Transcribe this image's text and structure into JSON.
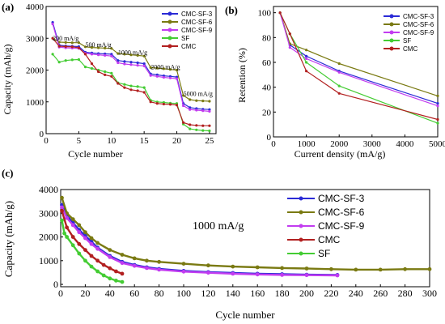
{
  "colors": {
    "cmc_sf_3": "#2b2bd6",
    "cmc_sf_6": "#7a7a12",
    "cmc_sf_9": "#c23cf0",
    "sf": "#44cc33",
    "cmc": "#b22020"
  },
  "chart_data": [
    {
      "panel": "(a)",
      "type": "line",
      "xlabel": "Cycle number",
      "ylabel": "Capacity (mAh/g)",
      "xlim": [
        0,
        26
      ],
      "ylim": [
        0,
        4000
      ],
      "xticks": [
        0,
        5,
        10,
        15,
        20,
        25
      ],
      "yticks": [
        0,
        1000,
        2000,
        3000,
        4000
      ],
      "legend": "top-right",
      "annotations": [
        {
          "text": "200 mA/g",
          "x": 1.0,
          "y": 2930
        },
        {
          "text": "500 mA/g",
          "x": 6.0,
          "y": 2720
        },
        {
          "text": "1000 mA/g",
          "x": 11.0,
          "y": 2490
        },
        {
          "text": "2000 mA/g",
          "x": 16.0,
          "y": 2030
        },
        {
          "text": "5000 mA/g",
          "x": 21.0,
          "y": 1180
        }
      ],
      "x": [
        1,
        2,
        3,
        4,
        5,
        6,
        7,
        8,
        9,
        10,
        11,
        12,
        13,
        14,
        15,
        16,
        17,
        18,
        19,
        20,
        21,
        22,
        23,
        24,
        25
      ],
      "series": [
        {
          "name": "CMC-SF-3",
          "color_key": "cmc_sf_3",
          "values": [
            3500,
            2780,
            2760,
            2750,
            2740,
            2560,
            2540,
            2520,
            2510,
            2500,
            2300,
            2270,
            2250,
            2230,
            2200,
            1880,
            1850,
            1820,
            1800,
            1780,
            950,
            820,
            790,
            770,
            760
          ]
        },
        {
          "name": "CMC-SF-6",
          "color_key": "cmc_sf_6",
          "values": [
            3000,
            2880,
            2870,
            2860,
            2860,
            2730,
            2710,
            2700,
            2690,
            2680,
            2520,
            2500,
            2480,
            2460,
            2440,
            2080,
            2060,
            2040,
            2020,
            2000,
            1200,
            1070,
            1040,
            1030,
            1020
          ]
        },
        {
          "name": "CMC-SF-9",
          "color_key": "cmc_sf_9",
          "values": [
            3450,
            2720,
            2700,
            2690,
            2680,
            2530,
            2500,
            2480,
            2460,
            2440,
            2230,
            2190,
            2170,
            2150,
            2130,
            1830,
            1800,
            1770,
            1750,
            1730,
            880,
            760,
            740,
            720,
            700
          ]
        },
        {
          "name": "SF",
          "color_key": "sf",
          "values": [
            2500,
            2250,
            2300,
            2320,
            2330,
            2100,
            2050,
            2000,
            1950,
            1900,
            1600,
            1550,
            1500,
            1480,
            1450,
            1050,
            1000,
            980,
            960,
            950,
            300,
            150,
            120,
            100,
            90
          ]
        },
        {
          "name": "CMC",
          "color_key": "cmc",
          "values": [
            3000,
            2750,
            2740,
            2730,
            2700,
            2500,
            2200,
            1950,
            1850,
            1800,
            1580,
            1450,
            1380,
            1350,
            1300,
            1000,
            950,
            930,
            920,
            900,
            350,
            280,
            260,
            250,
            250
          ]
        }
      ]
    },
    {
      "panel": "(b)",
      "type": "line",
      "xlabel": "Current density (mA/g)",
      "ylabel": "Retention (%)",
      "xlim": [
        0,
        5000
      ],
      "ylim": [
        0,
        105
      ],
      "xticks": [
        0,
        1000,
        2000,
        3000,
        4000,
        5000
      ],
      "yticks": [
        0,
        20,
        40,
        60,
        80,
        100
      ],
      "legend": "top-right",
      "x": [
        200,
        500,
        1000,
        2000,
        5000
      ],
      "series": [
        {
          "name": "CMC-SF-3",
          "color_key": "cmc_sf_3",
          "values": [
            100,
            74,
            65,
            53,
            27
          ]
        },
        {
          "name": "CMC-SF-6",
          "color_key": "cmc_sf_6",
          "values": [
            100,
            75,
            70,
            59,
            33
          ]
        },
        {
          "name": "CMC-SF-9",
          "color_key": "cmc_sf_9",
          "values": [
            100,
            72,
            63,
            52,
            25
          ]
        },
        {
          "name": "SF",
          "color_key": "sf",
          "values": [
            100,
            83,
            60,
            41,
            11
          ]
        },
        {
          "name": "CMC",
          "color_key": "cmc",
          "values": [
            100,
            83,
            53,
            35,
            14
          ]
        }
      ]
    },
    {
      "panel": "(c)",
      "type": "line",
      "xlabel": "Cycle number",
      "ylabel": "Capacity (mAh/g)",
      "xlim": [
        0,
        300
      ],
      "ylim": [
        -100,
        4000
      ],
      "xticks": [
        0,
        20,
        40,
        60,
        80,
        100,
        120,
        140,
        160,
        180,
        200,
        220,
        240,
        260,
        280,
        300
      ],
      "yticks": [
        0,
        1000,
        2000,
        3000,
        4000
      ],
      "legend": "top-right",
      "annotation": "1000 mA/g",
      "series": [
        {
          "name": "CMC-SF-3",
          "color_key": "cmc_sf_3",
          "last_cycle": 225,
          "x": [
            1,
            5,
            10,
            15,
            20,
            25,
            30,
            40,
            50,
            60,
            70,
            80,
            100,
            120,
            140,
            160,
            180,
            200,
            225
          ],
          "values": [
            3350,
            2900,
            2600,
            2300,
            2050,
            1800,
            1550,
            1200,
            950,
            820,
            720,
            650,
            570,
            520,
            480,
            450,
            430,
            410,
            400
          ]
        },
        {
          "name": "CMC-SF-6",
          "color_key": "cmc_sf_6",
          "last_cycle": 300,
          "x": [
            1,
            5,
            10,
            15,
            20,
            25,
            30,
            40,
            50,
            60,
            70,
            80,
            100,
            120,
            140,
            160,
            180,
            200,
            220,
            240,
            260,
            280,
            300
          ],
          "values": [
            3650,
            3000,
            2750,
            2500,
            2200,
            1950,
            1750,
            1450,
            1250,
            1100,
            1000,
            950,
            870,
            800,
            750,
            720,
            690,
            670,
            640,
            620,
            620,
            640,
            640
          ]
        },
        {
          "name": "CMC-SF-9",
          "color_key": "cmc_sf_9",
          "last_cycle": 225,
          "x": [
            1,
            5,
            10,
            15,
            20,
            25,
            30,
            40,
            50,
            60,
            70,
            80,
            100,
            120,
            140,
            160,
            180,
            200,
            225
          ],
          "values": [
            3250,
            2800,
            2500,
            2200,
            1950,
            1700,
            1500,
            1150,
            900,
            780,
            690,
            620,
            540,
            490,
            450,
            420,
            400,
            390,
            380
          ]
        },
        {
          "name": "CMC",
          "color_key": "cmc",
          "last_cycle": 50,
          "x": [
            1,
            5,
            10,
            15,
            20,
            25,
            30,
            35,
            40,
            45,
            50
          ],
          "values": [
            3100,
            2400,
            2000,
            1700,
            1450,
            1200,
            1000,
            820,
            680,
            550,
            450
          ]
        },
        {
          "name": "SF",
          "color_key": "sf",
          "last_cycle": 50,
          "x": [
            1,
            3,
            5,
            10,
            15,
            20,
            25,
            30,
            35,
            40,
            45,
            50
          ],
          "values": [
            2700,
            2150,
            2000,
            1650,
            1300,
            1000,
            750,
            550,
            380,
            250,
            160,
            100
          ]
        }
      ]
    }
  ]
}
